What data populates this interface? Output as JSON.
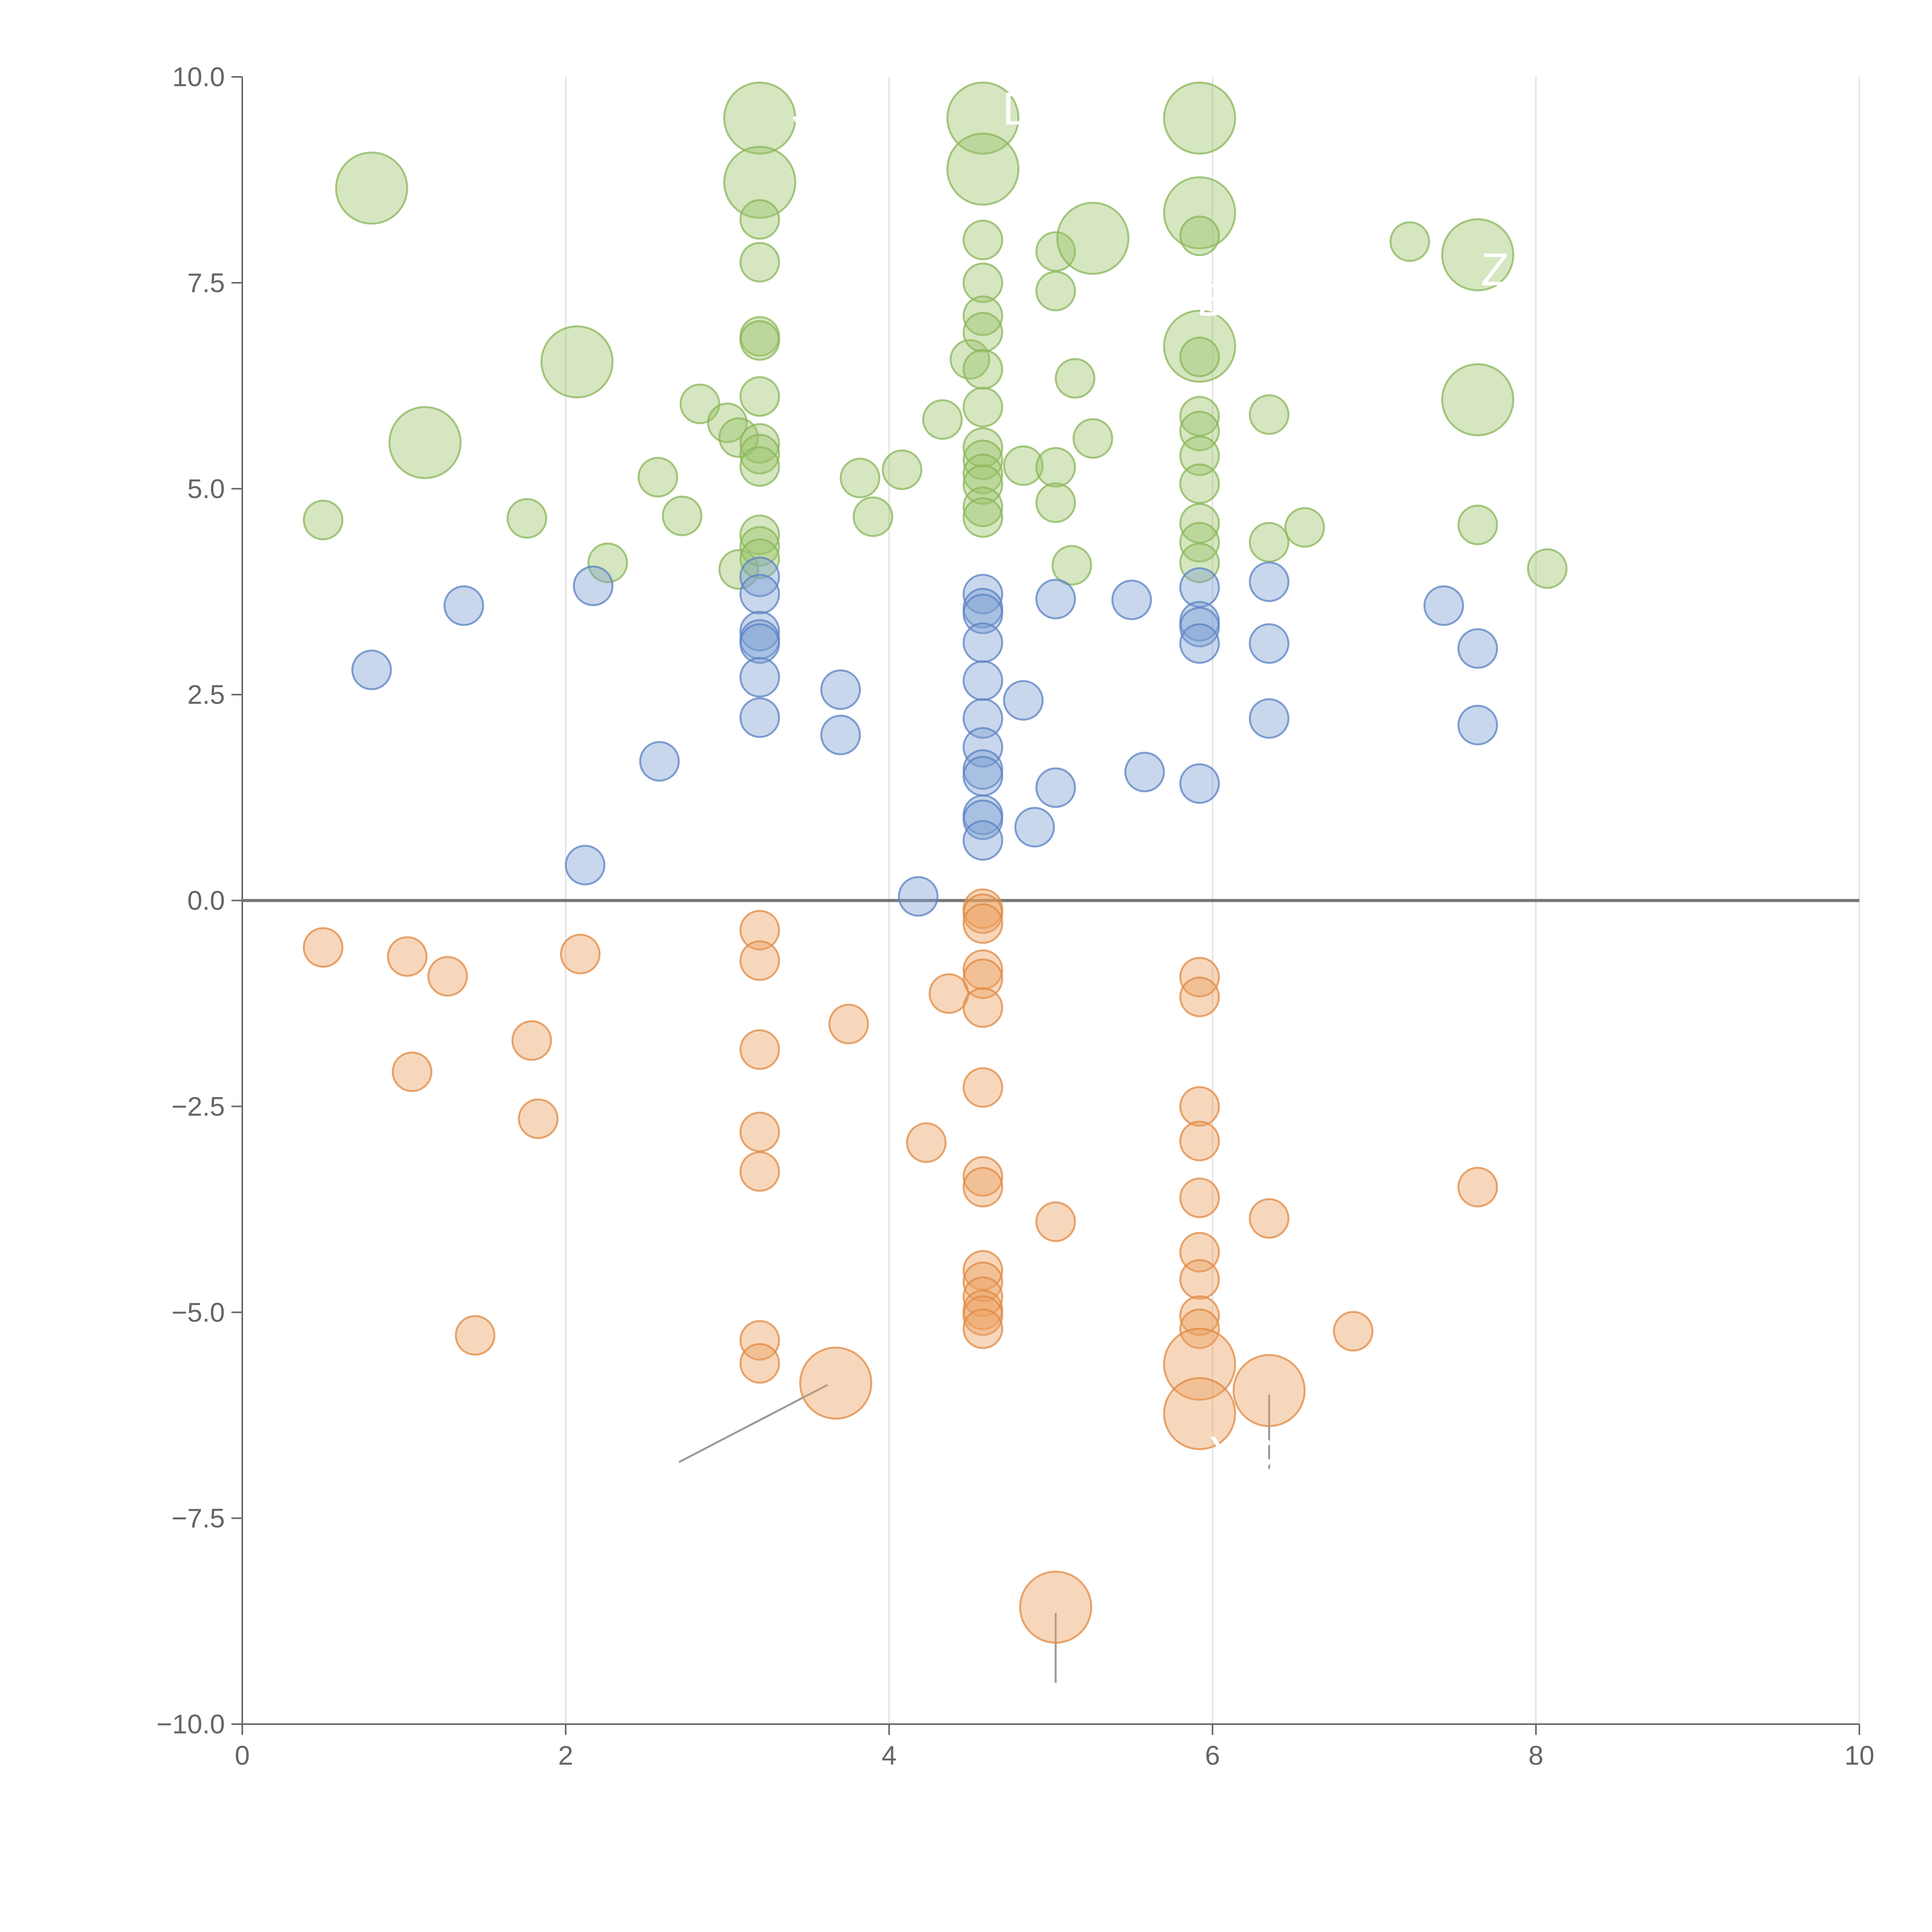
{
  "chart_data": {
    "type": "scatter",
    "title": "",
    "xlabel": "",
    "ylabel": "",
    "xlim": [
      0,
      10
    ],
    "ylim": [
      -10,
      10
    ],
    "x_ticks": [
      "0",
      "2",
      "4",
      "6",
      "8",
      "10"
    ],
    "y_ticks": [
      "−10.0",
      "−7.5",
      "−5.0",
      "−2.5",
      "0.0",
      "2.5",
      "5.0",
      "7.5",
      "10.0"
    ],
    "x_grid": true,
    "zero_line": true,
    "colors": {
      "green_fill": "#9cc46a",
      "green_stroke": "#8ab55a",
      "blue_fill": "#7d9fd2",
      "blue_stroke": "#5b82c4",
      "orange_fill": "#eb9f5f",
      "orange_stroke": "#e08a43",
      "leader": "#ffffff",
      "leader_dark": "#999999",
      "label": "#ffffff"
    },
    "groups": [
      {
        "key": "green",
        "points": [
          [
            0.5,
            4.62
          ],
          [
            0.8,
            8.65,
            "l"
          ],
          [
            1.13,
            5.56,
            "l"
          ],
          [
            1.76,
            4.64
          ],
          [
            2.07,
            6.54,
            "l"
          ],
          [
            2.26,
            4.1
          ],
          [
            2.57,
            5.14
          ],
          [
            2.72,
            4.67
          ],
          [
            2.83,
            6.03
          ],
          [
            3.0,
            5.8
          ],
          [
            3.07,
            5.62
          ],
          [
            3.07,
            4.02
          ],
          [
            3.2,
            9.5,
            "l"
          ],
          [
            3.2,
            8.72,
            "l"
          ],
          [
            3.2,
            8.27
          ],
          [
            3.2,
            7.75
          ],
          [
            3.2,
            6.85
          ],
          [
            3.2,
            6.8
          ],
          [
            3.2,
            6.12
          ],
          [
            3.2,
            5.55
          ],
          [
            3.2,
            5.42
          ],
          [
            3.2,
            5.27
          ],
          [
            3.2,
            4.44
          ],
          [
            3.2,
            4.3
          ],
          [
            3.2,
            4.15
          ],
          [
            3.82,
            5.13
          ],
          [
            3.9,
            4.66
          ],
          [
            4.08,
            5.23
          ],
          [
            4.33,
            5.84
          ],
          [
            4.5,
            6.57
          ],
          [
            4.58,
            9.5,
            "l"
          ],
          [
            4.58,
            8.88,
            "l"
          ],
          [
            4.58,
            8.02
          ],
          [
            4.58,
            7.5
          ],
          [
            4.58,
            7.1
          ],
          [
            4.58,
            6.9
          ],
          [
            4.58,
            6.45
          ],
          [
            4.58,
            5.99
          ],
          [
            4.58,
            5.5
          ],
          [
            4.58,
            5.35
          ],
          [
            4.58,
            5.18
          ],
          [
            4.58,
            5.05
          ],
          [
            4.58,
            4.78
          ],
          [
            4.58,
            4.65
          ],
          [
            4.83,
            5.28
          ],
          [
            5.03,
            7.88
          ],
          [
            5.03,
            7.4
          ],
          [
            5.03,
            5.26
          ],
          [
            5.03,
            4.83
          ],
          [
            5.13,
            4.07
          ],
          [
            5.15,
            6.34
          ],
          [
            5.26,
            8.04,
            "l"
          ],
          [
            5.26,
            5.61
          ],
          [
            5.92,
            9.5,
            "l"
          ],
          [
            5.92,
            8.35,
            "l"
          ],
          [
            5.92,
            8.07
          ],
          [
            5.92,
            6.73,
            "l"
          ],
          [
            5.92,
            6.6
          ],
          [
            5.92,
            5.88
          ],
          [
            5.92,
            5.7
          ],
          [
            5.92,
            5.4
          ],
          [
            5.92,
            5.06
          ],
          [
            5.92,
            4.58
          ],
          [
            5.92,
            4.35
          ],
          [
            5.92,
            4.1
          ],
          [
            6.35,
            5.9
          ],
          [
            6.35,
            4.35
          ],
          [
            6.57,
            4.53
          ],
          [
            7.22,
            8.0
          ],
          [
            7.64,
            7.84,
            "l"
          ],
          [
            7.64,
            6.08,
            "l"
          ],
          [
            7.64,
            4.56
          ],
          [
            8.07,
            4.03
          ]
        ]
      },
      {
        "key": "blue",
        "points": [
          [
            0.8,
            2.8
          ],
          [
            1.37,
            3.58
          ],
          [
            2.12,
            0.43
          ],
          [
            2.17,
            3.82
          ],
          [
            2.58,
            1.69
          ],
          [
            3.2,
            3.93
          ],
          [
            3.2,
            3.72
          ],
          [
            3.2,
            3.27
          ],
          [
            3.2,
            3.17
          ],
          [
            3.2,
            3.12
          ],
          [
            3.2,
            2.71
          ],
          [
            3.2,
            2.22
          ],
          [
            3.7,
            2.56
          ],
          [
            3.7,
            2.01
          ],
          [
            4.18,
            0.05
          ],
          [
            4.58,
            3.72
          ],
          [
            4.58,
            3.55
          ],
          [
            4.58,
            3.48
          ],
          [
            4.58,
            3.13
          ],
          [
            4.58,
            2.67
          ],
          [
            4.58,
            2.21
          ],
          [
            4.58,
            1.86
          ],
          [
            4.58,
            1.59
          ],
          [
            4.58,
            1.51
          ],
          [
            4.58,
            1.04
          ],
          [
            4.58,
            0.98
          ],
          [
            4.58,
            0.73
          ],
          [
            4.83,
            2.43
          ],
          [
            4.9,
            0.89
          ],
          [
            5.03,
            3.66
          ],
          [
            5.03,
            1.37
          ],
          [
            5.5,
            3.65
          ],
          [
            5.58,
            1.56
          ],
          [
            5.92,
            3.8
          ],
          [
            5.92,
            3.39
          ],
          [
            5.92,
            3.32
          ],
          [
            5.92,
            3.12
          ],
          [
            5.92,
            1.42
          ],
          [
            6.35,
            3.87
          ],
          [
            6.35,
            3.12
          ],
          [
            6.35,
            2.21
          ],
          [
            7.43,
            3.58
          ],
          [
            7.64,
            3.06
          ],
          [
            7.64,
            2.13
          ]
        ]
      },
      {
        "key": "orange",
        "points": [
          [
            0.5,
            -0.57
          ],
          [
            1.02,
            -0.68
          ],
          [
            1.05,
            -2.08
          ],
          [
            1.27,
            -0.92
          ],
          [
            1.44,
            -5.28
          ],
          [
            1.79,
            -1.7
          ],
          [
            1.83,
            -2.65
          ],
          [
            2.09,
            -0.65
          ],
          [
            3.2,
            -0.36
          ],
          [
            3.2,
            -0.73
          ],
          [
            3.2,
            -1.81
          ],
          [
            3.2,
            -2.81
          ],
          [
            3.2,
            -3.29
          ],
          [
            3.2,
            -5.34
          ],
          [
            3.2,
            -5.62
          ],
          [
            3.67,
            -5.86,
            "l"
          ],
          [
            3.75,
            -1.5
          ],
          [
            4.23,
            -2.94
          ],
          [
            4.37,
            -1.13
          ],
          [
            4.58,
            -0.1
          ],
          [
            4.58,
            -0.16
          ],
          [
            4.58,
            -0.28
          ],
          [
            4.58,
            -0.84
          ],
          [
            4.58,
            -0.95
          ],
          [
            4.58,
            -1.3
          ],
          [
            4.58,
            -2.27
          ],
          [
            4.58,
            -3.35
          ],
          [
            4.58,
            -3.48
          ],
          [
            4.58,
            -4.49
          ],
          [
            4.58,
            -4.63
          ],
          [
            4.58,
            -4.81
          ],
          [
            4.58,
            -4.97
          ],
          [
            4.58,
            -5.04
          ],
          [
            4.58,
            -5.2
          ],
          [
            5.03,
            -3.9
          ],
          [
            5.03,
            -8.58,
            "l"
          ],
          [
            5.92,
            -0.93
          ],
          [
            5.92,
            -1.17
          ],
          [
            5.92,
            -2.5
          ],
          [
            5.92,
            -2.92
          ],
          [
            5.92,
            -3.61
          ],
          [
            5.92,
            -4.27
          ],
          [
            5.92,
            -4.6
          ],
          [
            5.92,
            -5.04
          ],
          [
            5.92,
            -5.2
          ],
          [
            5.92,
            -5.63,
            "l"
          ],
          [
            5.92,
            -6.23,
            "l"
          ],
          [
            6.35,
            -3.86
          ],
          [
            6.35,
            -5.95,
            "l"
          ],
          [
            6.87,
            -5.23
          ],
          [
            7.64,
            -3.48
          ]
        ]
      }
    ],
    "annotations": [
      {
        "text": "S",
        "x": 3.39,
        "y": 9.42,
        "tx": 3.2,
        "ty": 9.5,
        "lx": 3.28,
        "ly": 9.48
      },
      {
        "text": "D",
        "x": 4.7,
        "y": 9.42,
        "tx": 4.58,
        "ty": 9.5,
        "lx": 4.62,
        "ly": 9.48
      },
      {
        "text": "B",
        "x": 5.9,
        "y": 7.1,
        "tx": 5.92,
        "ty": 6.73,
        "lx": 5.93,
        "ly": 6.95
      },
      {
        "text": "Z",
        "x": 7.66,
        "y": 7.47,
        "tx": 7.64,
        "ty": 7.84,
        "lx": 7.66,
        "ly": 7.6
      },
      {
        "text": "YC",
        "x": 5.98,
        "y": -6.9,
        "tx": 5.92,
        "ty": -5.63,
        "lx": 5.92,
        "ly": -7.2
      }
    ],
    "extra_leaders": [
      {
        "x1": 0.77,
        "y1": 8.1,
        "x2": 0.8,
        "y2": 8.55,
        "color": "leader"
      },
      {
        "x1": 1.25,
        "y1": 5.15,
        "x2": 1.15,
        "y2": 5.45,
        "color": "leader"
      },
      {
        "x1": 2.18,
        "y1": 6.15,
        "x2": 2.09,
        "y2": 6.4,
        "color": "leader"
      },
      {
        "x1": 3.36,
        "y1": 8.38,
        "x2": 3.22,
        "y2": 8.65,
        "color": "leader"
      },
      {
        "x1": 4.74,
        "y1": 8.88,
        "x2": 4.58,
        "y2": 9.05,
        "color": "leader"
      },
      {
        "x1": 5.58,
        "y1": 7.83,
        "x2": 5.3,
        "y2": 8.0,
        "color": "leader"
      },
      {
        "x1": 5.84,
        "y1": 8.6,
        "x2": 5.92,
        "y2": 8.28,
        "color": "leader"
      },
      {
        "x1": 7.76,
        "y1": 5.75,
        "x2": 7.67,
        "y2": 6.0,
        "color": "leader"
      },
      {
        "x1": 2.7,
        "y1": -6.82,
        "x2": 3.62,
        "y2": -5.88,
        "color": "leader_dark"
      },
      {
        "x1": 5.03,
        "y1": -9.5,
        "x2": 5.03,
        "y2": -8.65,
        "color": "leader_dark"
      },
      {
        "x1": 6.35,
        "y1": -6.9,
        "x2": 6.35,
        "y2": -6.0,
        "color": "leader_dark"
      },
      {
        "x1": 5.92,
        "y1": -7.2,
        "x2": 5.92,
        "y2": -5.67,
        "color": "leader_dark"
      }
    ]
  }
}
